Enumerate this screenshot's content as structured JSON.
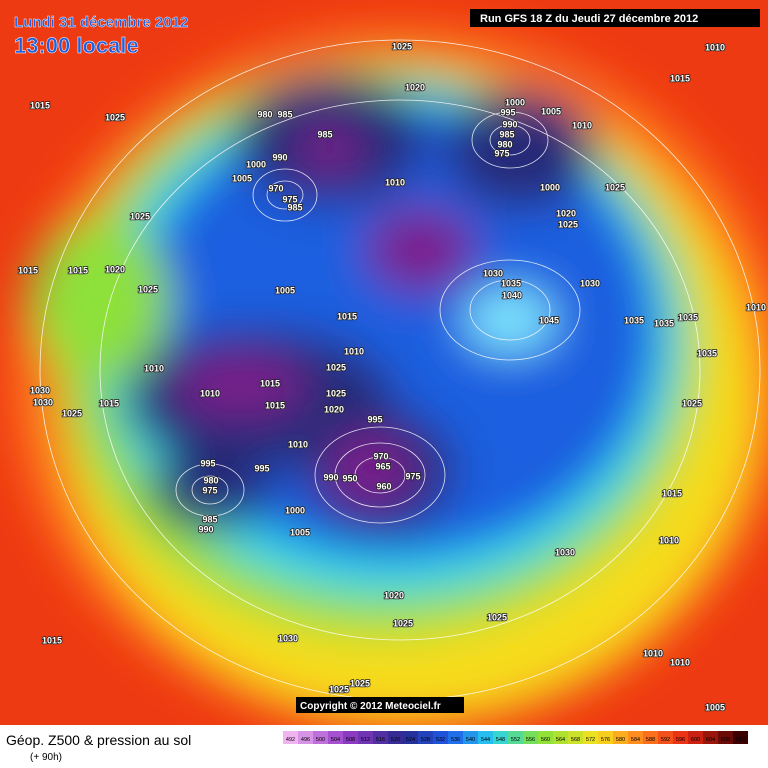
{
  "header": {
    "date": "Lundi 31 décembre 2012",
    "time": "13:00 locale",
    "run": "Run GFS 18 Z du Jeudi 27 décembre 2012"
  },
  "map": {
    "isobars": [
      1025,
      1010,
      1015,
      1015,
      1025,
      1020,
      980,
      985,
      985,
      990,
      1000,
      1005,
      970,
      975,
      985,
      1010,
      1000,
      995,
      1005,
      990,
      985,
      980,
      975,
      1010,
      1025,
      1000,
      1020,
      1025,
      1025,
      1015,
      1015,
      1020,
      1025,
      1005,
      1030,
      1035,
      1040,
      1030,
      1045,
      1035,
      1035,
      1035,
      1010,
      1015,
      1010,
      1035,
      1010,
      1010,
      1015,
      1025,
      1025,
      1015,
      1020,
      1030,
      1030,
      1025,
      1015,
      995,
      1025,
      1010,
      970,
      965,
      975,
      990,
      950,
      960,
      995,
      995,
      980,
      975,
      985,
      990,
      1000,
      1005,
      1015,
      1010,
      1030,
      1020,
      1025,
      1025,
      1015,
      1030,
      1010,
      1010,
      1025,
      1025,
      1005
    ],
    "copyright": "Copyright © 2012 Meteociel.fr"
  },
  "footer": {
    "title": "Géop. Z500 & pression au sol",
    "lead": "(+ 90h)",
    "scale": [
      492,
      496,
      500,
      504,
      508,
      512,
      516,
      520,
      524,
      528,
      532,
      536,
      540,
      544,
      548,
      552,
      556,
      560,
      564,
      568,
      572,
      576,
      580,
      584,
      588,
      592,
      596,
      600,
      604,
      608,
      612
    ]
  }
}
